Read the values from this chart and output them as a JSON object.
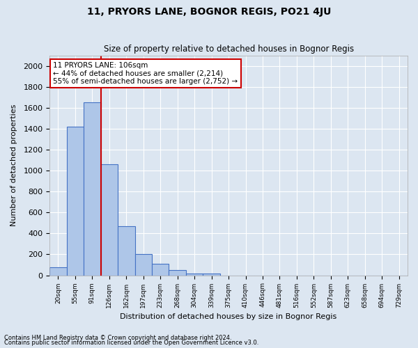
{
  "title": "11, PRYORS LANE, BOGNOR REGIS, PO21 4JU",
  "subtitle": "Size of property relative to detached houses in Bognor Regis",
  "xlabel": "Distribution of detached houses by size in Bognor Regis",
  "ylabel": "Number of detached properties",
  "footnote1": "Contains HM Land Registry data © Crown copyright and database right 2024.",
  "footnote2": "Contains public sector information licensed under the Open Government Licence v3.0.",
  "annotation_title": "11 PRYORS LANE: 106sqm",
  "annotation_line1": "← 44% of detached houses are smaller (2,214)",
  "annotation_line2": "55% of semi-detached houses are larger (2,752) →",
  "bar_color": "#aec6e8",
  "bar_edge_color": "#4472c4",
  "background_color": "#dce6f1",
  "grid_color": "#ffffff",
  "annotation_box_color": "#ffffff",
  "annotation_box_edge": "#cc0000",
  "red_line_color": "#cc0000",
  "bin_labels": [
    "20sqm",
    "55sqm",
    "91sqm",
    "126sqm",
    "162sqm",
    "197sqm",
    "233sqm",
    "268sqm",
    "304sqm",
    "339sqm",
    "375sqm",
    "410sqm",
    "446sqm",
    "481sqm",
    "516sqm",
    "552sqm",
    "587sqm",
    "623sqm",
    "658sqm",
    "694sqm",
    "729sqm"
  ],
  "bar_values": [
    75,
    1420,
    1650,
    1060,
    470,
    200,
    110,
    50,
    20,
    15,
    0,
    0,
    0,
    0,
    0,
    0,
    0,
    0,
    0,
    0,
    0
  ],
  "red_line_x": 2.5,
  "ylim": [
    0,
    2100
  ],
  "yticks": [
    0,
    200,
    400,
    600,
    800,
    1000,
    1200,
    1400,
    1600,
    1800,
    2000
  ]
}
